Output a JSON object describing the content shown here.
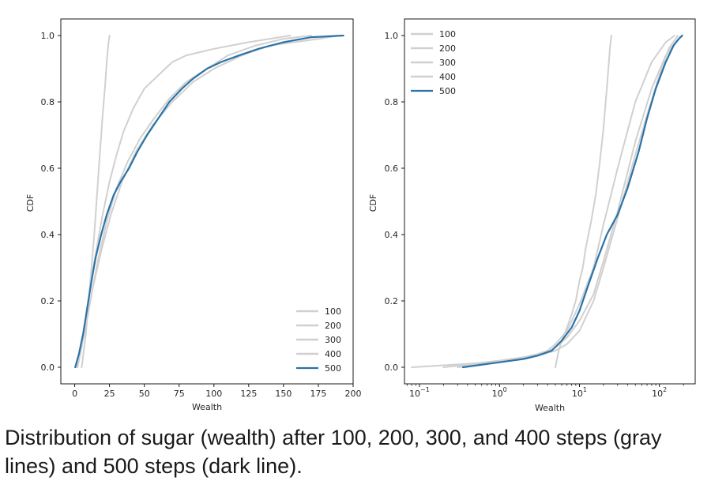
{
  "caption": "Distribution of sugar (wealth) after 100, 200, 300, and 400 steps (gray lines) and 500 steps (dark line).",
  "colors": {
    "gray": "#d0d0d0",
    "highlight": "#2a73a8",
    "axis": "#000000",
    "text": "#262626"
  },
  "chart_data": [
    {
      "type": "line",
      "xlabel": "Wealth",
      "ylabel": "CDF",
      "xscale": "linear",
      "xlim": [
        -10,
        200
      ],
      "ylim": [
        -0.05,
        1.05
      ],
      "xticks": [
        0,
        25,
        50,
        75,
        100,
        125,
        150,
        175,
        200
      ],
      "xtick_labels": [
        "0",
        "25",
        "50",
        "75",
        "100",
        "125",
        "150",
        "175",
        "200"
      ],
      "yticks": [
        0.0,
        0.2,
        0.4,
        0.6,
        0.8,
        1.0
      ],
      "ytick_labels": [
        "0.0",
        "0.2",
        "0.4",
        "0.6",
        "0.8",
        "1.0"
      ],
      "grid": false,
      "legend_position": "lower-right",
      "series": [
        {
          "name": "100",
          "color": "#d0d0d0",
          "x": [
            5,
            8,
            10,
            12,
            14,
            16,
            18,
            20,
            22,
            23,
            24,
            25
          ],
          "y": [
            0.0,
            0.1,
            0.2,
            0.3,
            0.4,
            0.52,
            0.64,
            0.76,
            0.86,
            0.92,
            0.97,
            1.0
          ]
        },
        {
          "name": "200",
          "color": "#d0d0d0",
          "x": [
            2,
            5,
            8,
            11,
            15,
            20,
            25,
            30,
            35,
            42,
            50,
            60,
            70,
            80,
            100,
            125,
            155
          ],
          "y": [
            0.0,
            0.06,
            0.14,
            0.24,
            0.34,
            0.46,
            0.56,
            0.64,
            0.71,
            0.78,
            0.84,
            0.88,
            0.92,
            0.94,
            0.96,
            0.98,
            1.0
          ]
        },
        {
          "name": "300",
          "color": "#d0d0d0",
          "x": [
            1,
            4,
            8,
            13,
            19,
            26,
            34,
            44,
            56,
            70,
            85,
            100,
            120,
            140,
            175,
            190
          ],
          "y": [
            0.0,
            0.05,
            0.13,
            0.24,
            0.35,
            0.46,
            0.56,
            0.65,
            0.73,
            0.8,
            0.86,
            0.9,
            0.94,
            0.97,
            0.99,
            1.0
          ]
        },
        {
          "name": "400",
          "color": "#d0d0d0",
          "x": [
            1,
            4,
            8,
            12,
            17,
            23,
            30,
            38,
            47,
            57,
            68,
            80,
            95,
            110,
            130,
            150,
            170
          ],
          "y": [
            0.0,
            0.05,
            0.12,
            0.22,
            0.33,
            0.44,
            0.54,
            0.62,
            0.69,
            0.75,
            0.81,
            0.86,
            0.9,
            0.94,
            0.97,
            0.99,
            1.0
          ]
        },
        {
          "name": "500",
          "color": "#2a73a8",
          "highlight": true,
          "x": [
            0.35,
            3,
            6,
            9,
            12,
            15,
            19,
            23,
            28,
            33,
            39,
            45,
            52,
            60,
            68,
            77,
            85,
            95,
            105,
            118,
            132,
            150,
            170,
            193
          ],
          "y": [
            0.0,
            0.04,
            0.1,
            0.18,
            0.26,
            0.33,
            0.4,
            0.46,
            0.52,
            0.56,
            0.6,
            0.65,
            0.7,
            0.75,
            0.8,
            0.84,
            0.87,
            0.9,
            0.92,
            0.94,
            0.96,
            0.98,
            0.995,
            1.0
          ]
        }
      ]
    },
    {
      "type": "line",
      "xlabel": "Wealth",
      "ylabel": "CDF",
      "xscale": "log",
      "xlim": [
        0.065,
        280
      ],
      "ylim": [
        -0.05,
        1.05
      ],
      "xticks": [
        0.1,
        1,
        10,
        100
      ],
      "xtick_labels": [
        "10",
        "10",
        "10",
        "10"
      ],
      "xtick_exponents": [
        "−1",
        "0",
        "1",
        "2"
      ],
      "yticks": [
        0.0,
        0.2,
        0.4,
        0.6,
        0.8,
        1.0
      ],
      "ytick_labels": [
        "0.0",
        "0.2",
        "0.4",
        "0.6",
        "0.8",
        "1.0"
      ],
      "grid": false,
      "legend_position": "upper-left",
      "series": [
        {
          "name": "100",
          "color": "#d0d0d0",
          "x": [
            5,
            5.5,
            6,
            7,
            8,
            9,
            10,
            11,
            12,
            14,
            16,
            18,
            20,
            22,
            23,
            24,
            25
          ],
          "y": [
            0.0,
            0.05,
            0.08,
            0.12,
            0.16,
            0.2,
            0.26,
            0.3,
            0.36,
            0.44,
            0.52,
            0.62,
            0.72,
            0.84,
            0.9,
            0.96,
            1.0
          ]
        },
        {
          "name": "200",
          "color": "#d0d0d0",
          "x": [
            0.2,
            0.5,
            1,
            2,
            3,
            4,
            5,
            7,
            10,
            15,
            20,
            30,
            50,
            80,
            120,
            155
          ],
          "y": [
            0.0,
            0.01,
            0.02,
            0.03,
            0.04,
            0.05,
            0.07,
            0.11,
            0.19,
            0.3,
            0.43,
            0.6,
            0.8,
            0.92,
            0.98,
            1.0
          ]
        },
        {
          "name": "300",
          "color": "#d0d0d0",
          "x": [
            0.08,
            0.5,
            1,
            2,
            4,
            5,
            7,
            10,
            15,
            20,
            30,
            50,
            80,
            120,
            160,
            190
          ],
          "y": [
            0.0,
            0.012,
            0.02,
            0.03,
            0.045,
            0.06,
            0.09,
            0.14,
            0.22,
            0.32,
            0.47,
            0.68,
            0.84,
            0.94,
            0.98,
            1.0
          ]
        },
        {
          "name": "400",
          "color": "#d0d0d0",
          "x": [
            0.3,
            1,
            2,
            3,
            5,
            7,
            10,
            15,
            20,
            30,
            50,
            70,
            100,
            130,
            170
          ],
          "y": [
            0.0,
            0.015,
            0.025,
            0.035,
            0.05,
            0.07,
            0.11,
            0.2,
            0.3,
            0.45,
            0.64,
            0.76,
            0.88,
            0.96,
            1.0
          ]
        },
        {
          "name": "500",
          "color": "#2a73a8",
          "highlight": true,
          "x": [
            0.35,
            1,
            2,
            3,
            4.5,
            6,
            8,
            10,
            13,
            17,
            22,
            30,
            40,
            55,
            70,
            90,
            120,
            150,
            175,
            193
          ],
          "y": [
            0.0,
            0.015,
            0.025,
            0.035,
            0.05,
            0.08,
            0.12,
            0.17,
            0.25,
            0.33,
            0.4,
            0.46,
            0.54,
            0.65,
            0.75,
            0.84,
            0.92,
            0.97,
            0.99,
            1.0
          ]
        }
      ]
    }
  ]
}
